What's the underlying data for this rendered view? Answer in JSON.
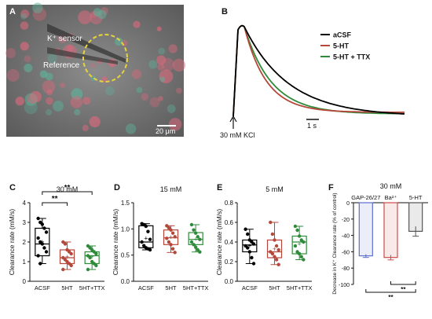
{
  "panel_a": {
    "letter": "A",
    "sensor_label": "K⁺ sensor",
    "reference_label": "Reference",
    "scalebar_label": "20 μm"
  },
  "panel_b": {
    "letter": "B",
    "stimulus_label": "30 mM KCl",
    "time_scale_label": "1 s",
    "legend": [
      {
        "name": "aCSF",
        "color": "#000000"
      },
      {
        "name": "5-HT",
        "color": "#b5483a"
      },
      {
        "name": "5-HT + TTX",
        "color": "#2e8b3a"
      }
    ]
  },
  "chart_data": [
    {
      "type": "box",
      "panel": "C",
      "title": "30 mM",
      "ylabel": "Clearance rate (mM/s)",
      "ylim": [
        0,
        4
      ],
      "yticks": [
        0,
        1,
        2,
        3,
        4
      ],
      "categories": [
        "ACSF",
        "5HT",
        "5HT+TTX"
      ],
      "colors": [
        "#000000",
        "#b5483a",
        "#2e8b3a"
      ],
      "boxes": [
        {
          "min": 0.9,
          "q1": 1.3,
          "median": 1.9,
          "q3": 2.7,
          "max": 3.2,
          "mean": 2.0
        },
        {
          "min": 0.6,
          "q1": 0.9,
          "median": 1.2,
          "q3": 1.6,
          "max": 2.0,
          "mean": 1.25
        },
        {
          "min": 0.6,
          "q1": 0.9,
          "median": 1.3,
          "q3": 1.5,
          "max": 1.8,
          "mean": 1.25
        }
      ],
      "points": [
        [
          3.2,
          3.0,
          2.9,
          2.7,
          2.5,
          2.2,
          2.0,
          1.9,
          1.7,
          1.5,
          1.3,
          0.9
        ],
        [
          2.0,
          1.9,
          1.6,
          1.5,
          1.4,
          1.2,
          1.1,
          1.0,
          0.9,
          0.8,
          0.6
        ],
        [
          1.8,
          1.7,
          1.6,
          1.5,
          1.4,
          1.3,
          1.2,
          1.0,
          0.9,
          0.8,
          0.6
        ]
      ],
      "significance": [
        {
          "from": 0,
          "to": 1,
          "label": "**"
        },
        {
          "from": 0,
          "to": 2,
          "label": "**"
        }
      ]
    },
    {
      "type": "box",
      "panel": "D",
      "title": "15 mM",
      "ylabel": "Clearance rate (mM/s)",
      "ylim": [
        0,
        1.5
      ],
      "yticks": [
        0,
        0.5,
        1.0,
        1.5
      ],
      "yticklabels": [
        "0.0",
        "0.5",
        "1.0",
        "1.5"
      ],
      "categories": [
        "ACSF",
        "5HT",
        "5HT+TTX"
      ],
      "colors": [
        "#000000",
        "#b5483a",
        "#2e8b3a"
      ],
      "boxes": [
        {
          "min": 0.6,
          "q1": 0.64,
          "median": 0.75,
          "q3": 1.06,
          "max": 1.1,
          "mean": 0.82
        },
        {
          "min": 0.55,
          "q1": 0.7,
          "median": 0.83,
          "q3": 0.98,
          "max": 1.06,
          "mean": 0.84
        },
        {
          "min": 0.56,
          "q1": 0.7,
          "median": 0.8,
          "q3": 0.93,
          "max": 1.08,
          "mean": 0.8
        }
      ],
      "points": [
        [
          1.1,
          1.08,
          1.05,
          0.95,
          0.8,
          0.75,
          0.68,
          0.64,
          0.62,
          0.6
        ],
        [
          1.06,
          1.02,
          0.98,
          0.92,
          0.85,
          0.82,
          0.75,
          0.7,
          0.62,
          0.55
        ],
        [
          1.08,
          0.98,
          0.92,
          0.85,
          0.8,
          0.75,
          0.7,
          0.65,
          0.6,
          0.56
        ]
      ],
      "significance": []
    },
    {
      "type": "box",
      "panel": "E",
      "title": "5 mM",
      "ylabel": "Clearance rate (mM/s)",
      "ylim": [
        0,
        0.8
      ],
      "yticks": [
        0,
        0.2,
        0.4,
        0.6,
        0.8
      ],
      "yticklabels": [
        "0.0",
        "0.2",
        "0.4",
        "0.6",
        "0.8"
      ],
      "categories": [
        "ACSF",
        "5HT",
        "5HT+TTX"
      ],
      "colors": [
        "#000000",
        "#b5483a",
        "#2e8b3a"
      ],
      "boxes": [
        {
          "min": 0.18,
          "q1": 0.3,
          "median": 0.37,
          "q3": 0.42,
          "max": 0.53,
          "mean": 0.36
        },
        {
          "min": 0.17,
          "q1": 0.24,
          "median": 0.3,
          "q3": 0.42,
          "max": 0.6,
          "mean": 0.33
        },
        {
          "min": 0.22,
          "q1": 0.28,
          "median": 0.4,
          "q3": 0.46,
          "max": 0.56,
          "mean": 0.38
        }
      ],
      "points": [
        [
          0.53,
          0.48,
          0.42,
          0.4,
          0.38,
          0.36,
          0.34,
          0.3,
          0.24,
          0.18
        ],
        [
          0.6,
          0.48,
          0.42,
          0.36,
          0.32,
          0.3,
          0.28,
          0.25,
          0.22,
          0.17
        ],
        [
          0.56,
          0.52,
          0.46,
          0.42,
          0.4,
          0.36,
          0.3,
          0.28,
          0.25,
          0.22
        ]
      ],
      "significance": []
    },
    {
      "type": "bar",
      "panel": "F",
      "title": "30 mM",
      "ylabel": "Decrease in K⁺ Clearance rate (% of control)",
      "ylim": [
        -100,
        0
      ],
      "yticks": [
        0,
        -20,
        -40,
        -60,
        -80,
        -100
      ],
      "categories": [
        "GAP-26/27",
        "Ba²⁺",
        "5-HT"
      ],
      "values": [
        -65,
        -67,
        -35
      ],
      "errors": [
        2,
        3,
        6
      ],
      "colors": [
        "#5a6fd0",
        "#d24a4a",
        "#555555"
      ],
      "significance": [
        {
          "from": 0,
          "to": 2,
          "label": "**"
        },
        {
          "from": 1,
          "to": 2,
          "label": "**"
        }
      ]
    }
  ]
}
